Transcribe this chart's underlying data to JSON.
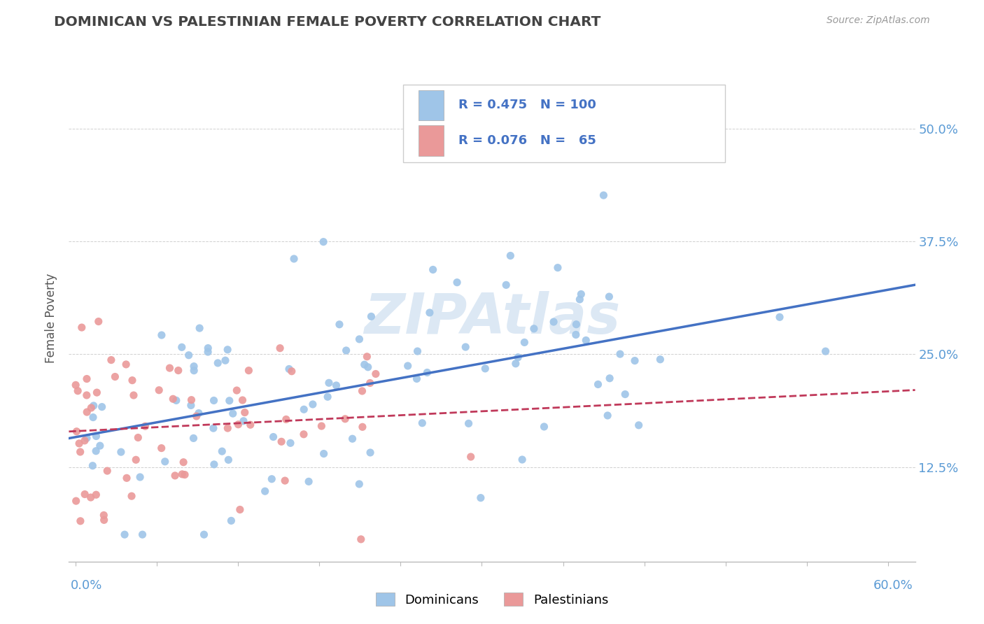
{
  "title": "DOMINICAN VS PALESTINIAN FEMALE POVERTY CORRELATION CHART",
  "source": "Source: ZipAtlas.com",
  "ylabel": "Female Poverty",
  "ytick_labels": [
    "12.5%",
    "25.0%",
    "37.5%",
    "50.0%"
  ],
  "ytick_values": [
    0.125,
    0.25,
    0.375,
    0.5
  ],
  "xlim": [
    -0.005,
    0.62
  ],
  "ylim": [
    0.02,
    0.56
  ],
  "dominicans_R": 0.475,
  "dominicans_N": 100,
  "palestinians_R": 0.076,
  "palestinians_N": 65,
  "dominican_scatter_color": "#9fc5e8",
  "palestinian_scatter_color": "#ea9999",
  "dominican_line_color": "#4472c4",
  "palestinian_line_color": "#c0395a",
  "background_color": "#ffffff",
  "title_color": "#434343",
  "axis_label_color": "#5b9bd5",
  "grid_color": "#aaaaaa",
  "watermark_color": "#dce8f4",
  "legend_text_color": "#4472c4"
}
